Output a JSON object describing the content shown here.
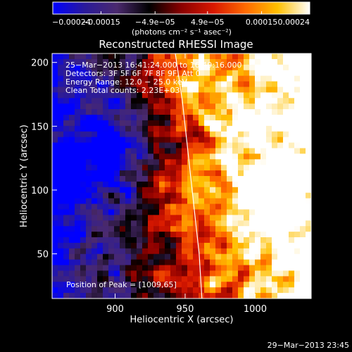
{
  "chart_data": {
    "type": "heatmap",
    "title": "Reconstructed RHESSI Image",
    "xlabel": "Heliocentric X (arcsec)",
    "ylabel": "Heliocentric Y (arcsec)",
    "xlim": [
      855,
      1040
    ],
    "ylim": [
      15,
      207
    ],
    "x_ticks": [
      900,
      950,
      1000
    ],
    "y_ticks": [
      50,
      100,
      150,
      200
    ],
    "colorbar": {
      "min": -0.00024,
      "max": 0.00024,
      "ticks": [
        {
          "value": -0.00024,
          "label": "−0.00024"
        },
        {
          "value": -0.00015,
          "label": "−0.00015"
        },
        {
          "value": -4.9e-05,
          "label": "−4.9e−05"
        },
        {
          "value": 4.9e-05,
          "label": "4.9e−05"
        },
        {
          "value": 0.00015,
          "label": "0.00015"
        },
        {
          "value": 0.00024,
          "label": "0.00024"
        }
      ],
      "unit_label": "(photons cm⁻² s⁻¹ asec⁻²)",
      "colormap": [
        "#0000ff",
        "#2a1a9a",
        "#4b2a6e",
        "#000000",
        "#8a0000",
        "#d81800",
        "#ff6a00",
        "#ffc000",
        "#ffffff"
      ]
    },
    "annotations": [
      "25−Mar−2013 16:41:24.000 to 16:49:16.000",
      "Detectors: 3F 5F 6F 7F 8F 9F, Att 0",
      "Energy Range: 12.0 − 25.0 keV",
      "Clean     Total counts: 2.23E+03"
    ],
    "peak_label": "Position of Peak = [1009,65]",
    "peak": [
      1009,
      65
    ],
    "limb_curve": {
      "x": [
        943,
        948,
        952,
        956,
        960,
        962
      ],
      "y": [
        207,
        170,
        130,
        90,
        50,
        15
      ],
      "color": "#ffffff"
    },
    "grid": false
  },
  "footer_timestamp": "29−Mar−2013 23:45"
}
